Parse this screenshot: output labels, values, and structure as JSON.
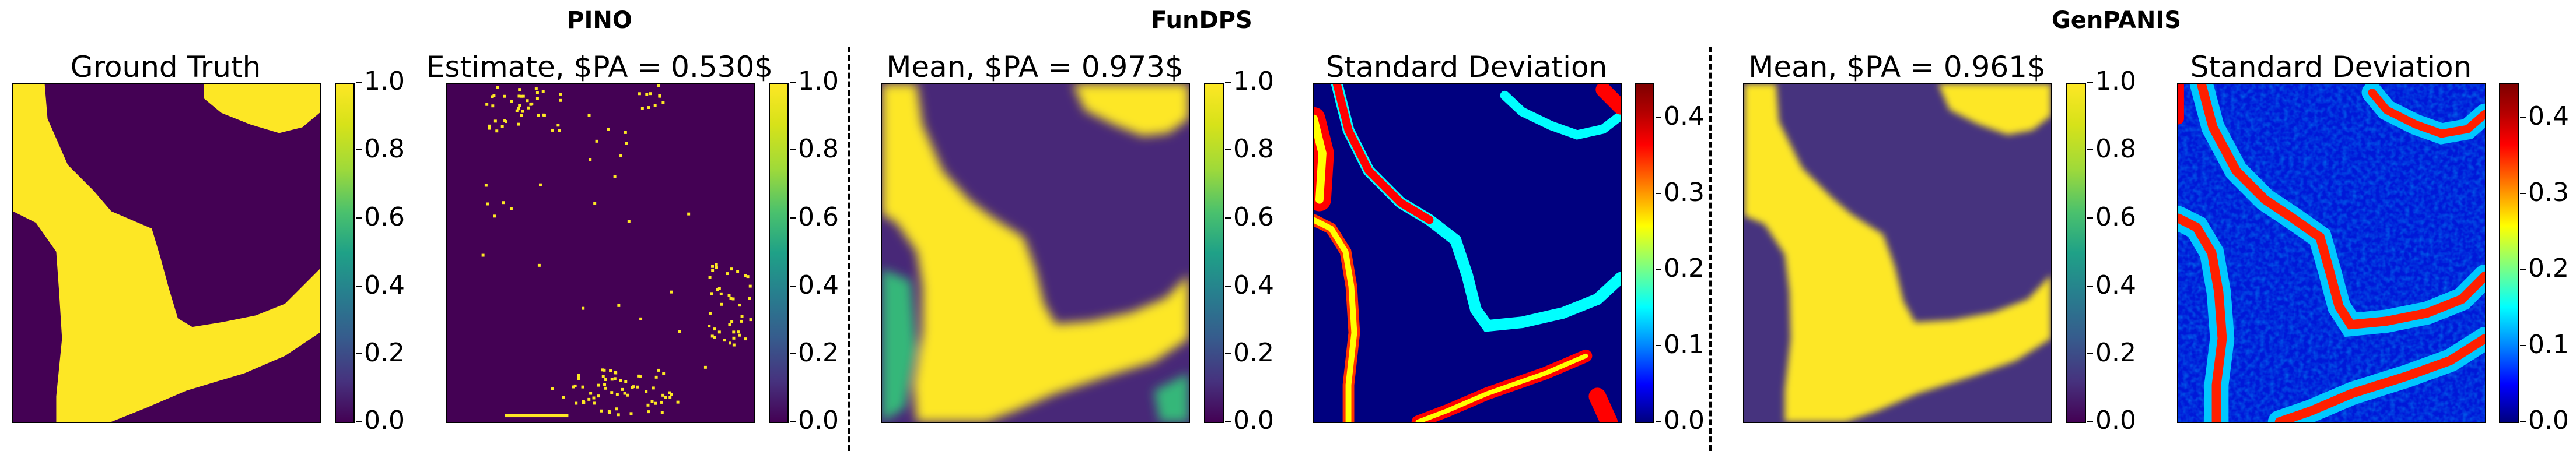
{
  "group_titles": [
    "PINO",
    "FunDPS",
    "GenPANIS"
  ],
  "colormaps": {
    "viridis": {
      "low": "#440154",
      "high": "#fde725"
    },
    "jet": {
      "low": "#00007f",
      "high": "#7f0000"
    }
  },
  "chart_data": [
    {
      "type": "heatmap",
      "title": "Ground Truth",
      "colormap": "viridis",
      "colorbar_range": [
        0.0,
        1.0
      ],
      "colorbar_ticks": [
        "0.0",
        "0.2",
        "0.4",
        "0.6",
        "0.8",
        "1.0"
      ]
    },
    {
      "type": "heatmap",
      "title": "Estimate, $PA = 0.530$",
      "colormap": "viridis",
      "colorbar_range": [
        0.0,
        1.0
      ],
      "colorbar_ticks": [
        "0.0",
        "0.2",
        "0.4",
        "0.6",
        "0.8",
        "1.0"
      ]
    },
    {
      "type": "heatmap",
      "title": "Mean, $PA = 0.973$",
      "colormap": "viridis",
      "colorbar_range": [
        0.0,
        1.0
      ],
      "colorbar_ticks": [
        "0.0",
        "0.2",
        "0.4",
        "0.6",
        "0.8",
        "1.0"
      ]
    },
    {
      "type": "heatmap",
      "title": "Standard Deviation",
      "colormap": "jet",
      "colorbar_range": [
        0.0,
        0.45
      ],
      "colorbar_ticks": [
        "0.0",
        "0.1",
        "0.2",
        "0.3",
        "0.4"
      ]
    },
    {
      "type": "heatmap",
      "title": "Mean, $PA = 0.961$",
      "colormap": "viridis",
      "colorbar_range": [
        0.0,
        1.0
      ],
      "colorbar_ticks": [
        "0.0",
        "0.2",
        "0.4",
        "0.6",
        "0.8",
        "1.0"
      ]
    },
    {
      "type": "heatmap",
      "title": "Standard Deviation",
      "colormap": "jet",
      "colorbar_range": [
        0.0,
        0.45
      ],
      "colorbar_ticks": [
        "0.0",
        "0.1",
        "0.2",
        "0.3",
        "0.4"
      ]
    }
  ]
}
